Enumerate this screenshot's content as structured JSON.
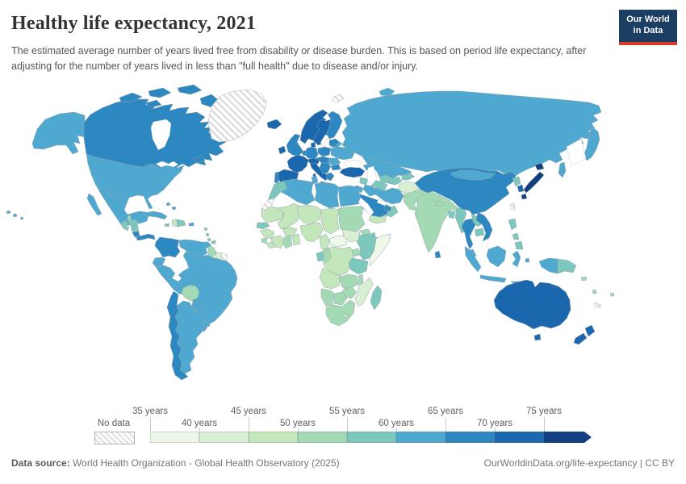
{
  "header": {
    "title": "Healthy life expectancy, 2021",
    "subtitle": "The estimated average number of years lived free from disability or disease burden. This is based on period life expectancy, after adjusting for the number of years lived in less than \"full health\" due to disease and/or injury.",
    "logo": {
      "line1": "Our World",
      "line2": "in Data",
      "bg_color": "#1d3e63",
      "accent_color": "#d93b2b"
    }
  },
  "legend": {
    "no_data_label": "No data",
    "ticks": [
      {
        "label": "35 years",
        "row": "top"
      },
      {
        "label": "40 years",
        "row": "bottom"
      },
      {
        "label": "45 years",
        "row": "top"
      },
      {
        "label": "50 years",
        "row": "bottom"
      },
      {
        "label": "55 years",
        "row": "top"
      },
      {
        "label": "60 years",
        "row": "bottom"
      },
      {
        "label": "65 years",
        "row": "top"
      },
      {
        "label": "70 years",
        "row": "bottom"
      },
      {
        "label": "75 years",
        "row": "top"
      }
    ],
    "bins": [
      {
        "range": "35-40 years",
        "color": "#edf8e8"
      },
      {
        "range": "40-45 years",
        "color": "#d9efd3"
      },
      {
        "range": "45-50 years",
        "color": "#c3e6ba"
      },
      {
        "range": "50-55 years",
        "color": "#a3dab4"
      },
      {
        "range": "55-60 years",
        "color": "#7cc8bd"
      },
      {
        "range": "60-65 years",
        "color": "#4ea8d0"
      },
      {
        "range": "65-70 years",
        "color": "#2d87c0"
      },
      {
        "range": "70-75 years",
        "color": "#1a67ad"
      },
      {
        "range": "75+ years",
        "color": "#123f80"
      }
    ]
  },
  "footer": {
    "source_label": "Data source:",
    "source_text": " World Health Organization - Global Health Observatory (2025)",
    "right_text": "OurWorldinData.org/life-expectancy | CC BY"
  },
  "chart_data": {
    "type": "heatmap",
    "subtype": "choropleth-world-map",
    "title": "Healthy life expectancy, 2021",
    "unit": "years",
    "legend_bins": [
      "35-40",
      "40-45",
      "45-50",
      "50-55",
      "55-60",
      "60-65",
      "65-70",
      "70-75",
      "75+"
    ],
    "regions": {
      "alaska": 5,
      "usa": 5,
      "canada": 6,
      "canada-arctic": 6,
      "newfoundland": 6,
      "hawaii": 5,
      "mexico": 5,
      "baja": 5,
      "guatemala": 4,
      "belize": 3,
      "honduras": 4,
      "el-salvador": 4,
      "nicaragua": 4,
      "costa-rica": 6,
      "panama": 6,
      "cuba": 5,
      "jamaica": 4,
      "haiti": 2,
      "dominican-republic": 4,
      "puerto-rico": 5,
      "bahamas": 5,
      "lesser-antilles": 4,
      "trinidad": 4,
      "iceland": 7,
      "colombia": 6,
      "venezuela": 5,
      "guyana": 3,
      "suriname": 1,
      "ecuador": 5,
      "peru": 5,
      "brazil": 5,
      "bolivia": 3,
      "paraguay": 5,
      "uruguay": 5,
      "argentina": 5,
      "chile": 6,
      "norway": 7,
      "sweden": 7,
      "finland": 6,
      "denmark": 7,
      "uk": 6,
      "ireland": 7,
      "benelux": 6,
      "germany": 6,
      "france": 7,
      "spain": 7,
      "portugal": 6,
      "italy": 7,
      "switzerland-austria": 7,
      "poland": 6,
      "czech-hungary": 6,
      "balkans": 6,
      "greece": 6,
      "romania": 5,
      "bulgaria": 6,
      "ukraine": 5,
      "belarus": 5,
      "baltics": 6,
      "turkey": 7,
      "russia": 5,
      "kazakhstan": 5,
      "uzbekistan": 4,
      "turkmenistan": 4,
      "kyrgyz-tajik": 4,
      "caucasus": 5,
      "iran": 5,
      "iraq": 5,
      "syria": 4,
      "jordan": 5,
      "israel": 7,
      "saudi-arabia": 6,
      "yemen": 2,
      "oman": 4,
      "uae": 6,
      "afghanistan": 1,
      "pakistan": 3,
      "india": 3,
      "nepal": 3,
      "bangladesh": 4,
      "sri-lanka": 6,
      "myanmar": 4,
      "thailand": 6,
      "laos": 4,
      "cambodia": 4,
      "vietnam": 6,
      "malaysia": 5,
      "indonesia": 5,
      "philippines": 4,
      "china": 6,
      "mongolia": 5,
      "north-korea": 4,
      "south-korea": 7,
      "japan": 8,
      "png": 4,
      "solomon": 3,
      "vanuatu": 3,
      "fiji": 3,
      "australia": 7,
      "tasmania": 7,
      "new-zealand": 7,
      "morocco": 4,
      "algeria": 5,
      "tunisia": 5,
      "libya": 5,
      "egypt": 5,
      "mauritania": 2,
      "mali": 2,
      "senegal": 4,
      "guinea": 2,
      "sierra-leone": 3,
      "liberia": 2,
      "ivory-coast": 2,
      "ghana": 3,
      "togo-benin": 2,
      "burkina": 2,
      "niger": 2,
      "nigeria": 2,
      "chad": 2,
      "sudan": 3,
      "eritrea": 3,
      "ethiopia": 4,
      "djibouti": 4,
      "somalia": 0,
      "cameroon": 2,
      "car": 0,
      "south-sudan": 1,
      "drc": 2,
      "gabon": 4,
      "congo": 3,
      "uganda": 3,
      "kenya": 4,
      "tanzania": 4,
      "angola": 2,
      "zambia": 3,
      "malawi": 3,
      "mozambique": 1,
      "zimbabwe": 3,
      "botswana": 3,
      "namibia": 3,
      "south-africa": 3,
      "lesotho": 1,
      "madagascar": 4
    },
    "no_data_regions": [
      "greenland",
      "western-sahara",
      "french-guiana",
      "taiwan",
      "svalbard",
      "new-caledonia"
    ]
  }
}
